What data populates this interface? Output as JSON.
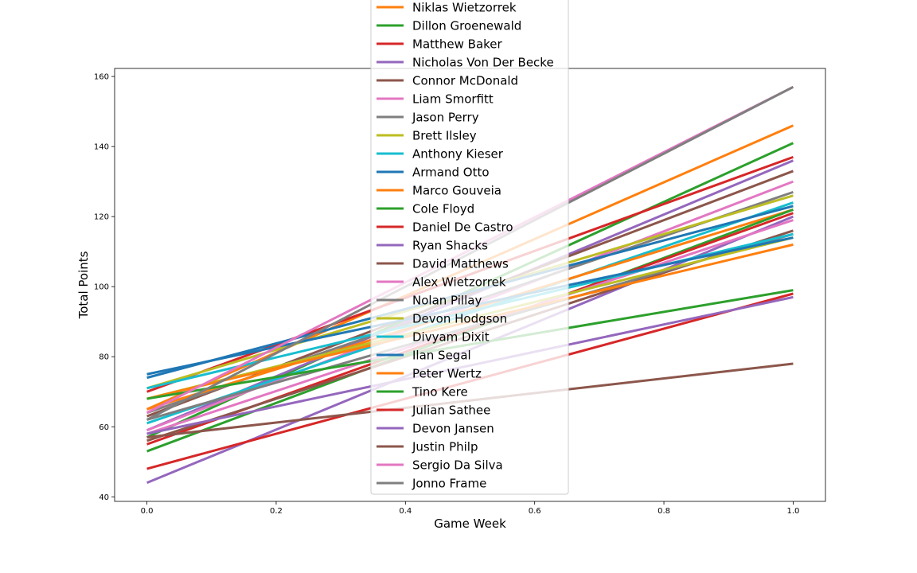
{
  "chart_data": {
    "type": "line",
    "title": "",
    "xlabel": "Game Week",
    "ylabel": "Total Points",
    "xlim": [
      -0.05,
      1.05
    ],
    "ylim": [
      38.7,
      162.3
    ],
    "x": [
      0.0,
      1.0
    ],
    "xticks": [
      "0.0",
      "0.2",
      "0.4",
      "0.6",
      "0.8",
      "1.0"
    ],
    "yticks": [
      "40",
      "60",
      "80",
      "100",
      "120",
      "140",
      "160"
    ],
    "grid": false,
    "legend_position": "top-center",
    "series": [
      {
        "name": "Niklas Wietzorrek",
        "color": "#ff7f0e",
        "values": [
          65,
          146
        ]
      },
      {
        "name": "Dillon Groenewald",
        "color": "#2ca02c",
        "values": [
          57,
          141
        ]
      },
      {
        "name": "Matthew Baker",
        "color": "#d62728",
        "values": [
          70,
          137
        ]
      },
      {
        "name": "Nicholas Von Der Becke",
        "color": "#9467bd",
        "values": [
          59,
          136
        ]
      },
      {
        "name": "Connor McDonald",
        "color": "#8c564b",
        "values": [
          63,
          133
        ]
      },
      {
        "name": "Liam Smorfitt",
        "color": "#e377c2",
        "values": [
          59,
          130
        ]
      },
      {
        "name": "Jason Perry",
        "color": "#7f7f7f",
        "values": [
          64,
          127
        ]
      },
      {
        "name": "Brett Ilsley",
        "color": "#bcbd22",
        "values": [
          71,
          126
        ]
      },
      {
        "name": "Anthony Kieser",
        "color": "#17becf",
        "values": [
          61,
          124
        ]
      },
      {
        "name": "Armand Otto",
        "color": "#1f77b4",
        "values": [
          74,
          123
        ]
      },
      {
        "name": "Marco Gouveia",
        "color": "#ff7f0e",
        "values": [
          65,
          122
        ]
      },
      {
        "name": "Cole Floyd",
        "color": "#2ca02c",
        "values": [
          53,
          122
        ]
      },
      {
        "name": "Daniel De Castro",
        "color": "#d62728",
        "values": [
          55,
          121
        ]
      },
      {
        "name": "Ryan Shacks",
        "color": "#9467bd",
        "values": [
          44,
          120
        ]
      },
      {
        "name": "David Matthews",
        "color": "#8c564b",
        "values": [
          56,
          116
        ]
      },
      {
        "name": "Alex Wietzorrek",
        "color": "#e377c2",
        "values": [
          58,
          119
        ]
      },
      {
        "name": "Nolan Pillay",
        "color": "#7f7f7f",
        "values": [
          62,
          115
        ]
      },
      {
        "name": "Devon Hodgson",
        "color": "#bcbd22",
        "values": [
          68,
          114
        ]
      },
      {
        "name": "Divyam Dixit",
        "color": "#17becf",
        "values": [
          71,
          115
        ]
      },
      {
        "name": "Ilan Segal",
        "color": "#1f77b4",
        "values": [
          75,
          114
        ]
      },
      {
        "name": "Peter Wertz",
        "color": "#ff7f0e",
        "values": [
          68,
          112
        ]
      },
      {
        "name": "Tino Kere",
        "color": "#2ca02c",
        "values": [
          68,
          99
        ]
      },
      {
        "name": "Julian Sathee",
        "color": "#d62728",
        "values": [
          48,
          98
        ]
      },
      {
        "name": "Devon Jansen",
        "color": "#9467bd",
        "values": [
          58,
          97
        ]
      },
      {
        "name": "Justin Philp",
        "color": "#8c564b",
        "values": [
          57,
          78
        ]
      },
      {
        "name": "Sergio Da Silva",
        "color": "#e377c2",
        "values": [
          64,
          157
        ]
      },
      {
        "name": "Jonno Frame",
        "color": "#7f7f7f",
        "values": [
          62,
          157
        ]
      }
    ]
  }
}
